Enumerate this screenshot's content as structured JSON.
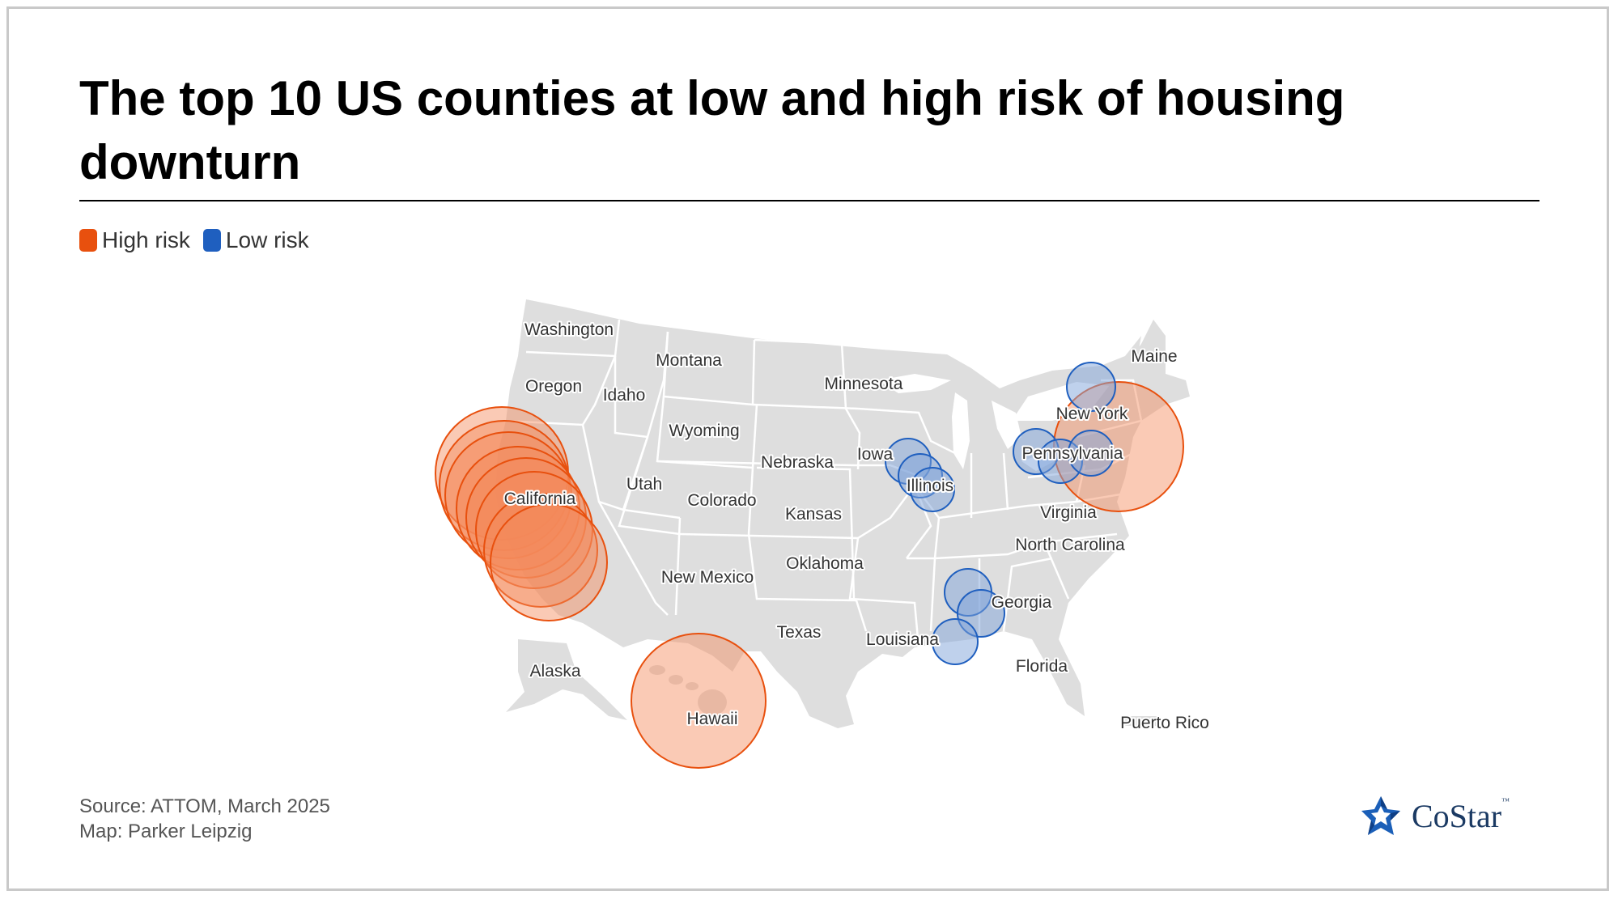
{
  "title": "The top 10 US counties at low and high risk of housing downturn",
  "legend": [
    {
      "label": "High risk",
      "color": "#e8500e"
    },
    {
      "label": "Low risk",
      "color": "#1f5fbf"
    }
  ],
  "map_labels": {
    "washington": "Washington",
    "oregon": "Oregon",
    "montana": "Montana",
    "idaho": "Idaho",
    "wyoming": "Wyoming",
    "minnesota": "Minnesota",
    "maine": "Maine",
    "new_york": "New York",
    "nebraska": "Nebraska",
    "iowa": "Iowa",
    "illinois": "Illinois",
    "pennsylvania": "Pennsylvania",
    "utah": "Utah",
    "california": "California",
    "colorado": "Colorado",
    "kansas": "Kansas",
    "virginia": "Virginia",
    "north_carolina": "North Carolina",
    "oklahoma": "Oklahoma",
    "new_mexico": "New Mexico",
    "georgia": "Georgia",
    "texas": "Texas",
    "louisiana": "Louisiana",
    "alaska": "Alaska",
    "florida": "Florida",
    "hawaii": "Hawaii",
    "puerto_rico": "Puerto Rico"
  },
  "colors": {
    "land": "#dedede",
    "border": "#ffffff",
    "high_fill": "#f58a5c",
    "high_stroke": "#e8500e",
    "low_fill": "#7fa3d9",
    "low_stroke": "#1f5fbf"
  },
  "source": {
    "line1": "Source: ATTOM, March 2025",
    "line2": "Map: Parker Leipzig"
  },
  "logo": {
    "name": "CoStar",
    "tm": "™"
  }
}
